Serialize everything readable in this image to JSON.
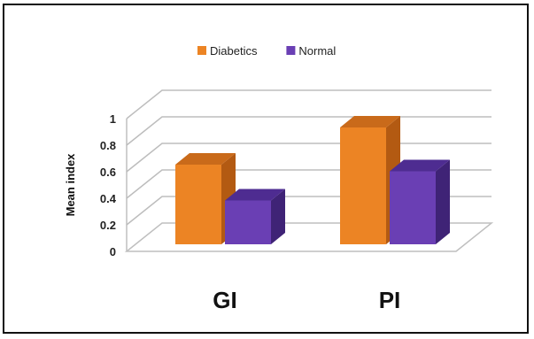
{
  "chart_data": {
    "type": "bar",
    "title": "",
    "xlabel": "",
    "ylabel": "Mean index",
    "categories": [
      "GI",
      "PI"
    ],
    "series": [
      {
        "name": "Diabetics",
        "values": [
          0.6,
          0.88
        ]
      },
      {
        "name": "Normal",
        "values": [
          0.33,
          0.55
        ]
      }
    ],
    "ylim": [
      0,
      1
    ],
    "yticks": [
      "0",
      "0.2",
      "0.4",
      "0.6",
      "0.8",
      "1"
    ],
    "grid": true,
    "legend_position": "top",
    "style": "3d-column",
    "colors": {
      "Diabetics": {
        "front": "#ec8424",
        "side": "#b35a12",
        "top": "#c96a1a"
      },
      "Normal": {
        "front": "#6a3fb4",
        "side": "#3f2376",
        "top": "#4e2c91"
      }
    }
  }
}
